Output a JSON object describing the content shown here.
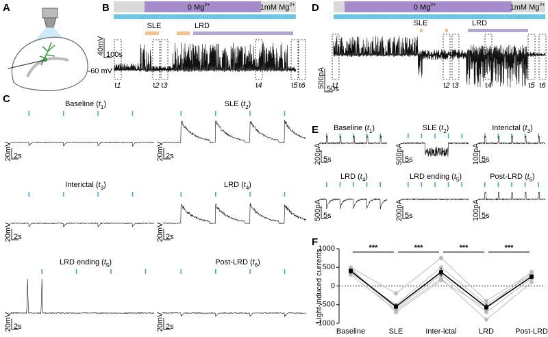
{
  "panels": {
    "A": {
      "letter": "A"
    },
    "B": {
      "letter": "B",
      "mg_free": [
        "0 Mg",
        "2+"
      ],
      "mg_normal": [
        "1mM Mg",
        "2+"
      ],
      "sle": "SLE",
      "lrd": "LRD",
      "scale_v": "40mV",
      "scale_t": "100s",
      "baseline": "-60 mV",
      "times": [
        [
          "t",
          "1"
        ],
        [
          "t",
          "2"
        ],
        [
          "t",
          "3"
        ],
        [
          "t",
          "4"
        ],
        [
          "t",
          "5"
        ],
        [
          "t",
          "6"
        ]
      ]
    },
    "C": {
      "letter": "C",
      "traces": [
        {
          "title": [
            "Baseline (",
            "t",
            "1",
            ")"
          ],
          "scale_v": "20mV",
          "scale_t": "2s"
        },
        {
          "title": [
            "SLE (",
            "t",
            "2",
            ")"
          ],
          "scale_v": "20mV",
          "scale_t": "2s"
        },
        {
          "title": [
            "Interictal (",
            "t",
            "3",
            ")"
          ],
          "scale_v": "20mV",
          "scale_t": "2s"
        },
        {
          "title": [
            "LRD (",
            "t",
            "4",
            ")"
          ],
          "scale_v": "20mV",
          "scale_t": "2s"
        },
        {
          "title": [
            "LRD ending (",
            "t",
            "5",
            ")"
          ],
          "scale_v": "20mV",
          "scale_t": "2s"
        },
        {
          "title": [
            "Post-LRD (",
            "t",
            "6",
            ")"
          ],
          "scale_v": "20mV",
          "scale_t": "2s"
        }
      ]
    },
    "D": {
      "letter": "D",
      "mg_free": [
        "0 Mg",
        "2+"
      ],
      "mg_normal": [
        "1mM Mg",
        "2+"
      ],
      "sle": "SLE",
      "lrd": "LRD",
      "scale_i": "500pA",
      "scale_t": "50s",
      "times": [
        [
          "t",
          "1"
        ],
        [
          "t",
          "2"
        ],
        [
          "t",
          "3"
        ],
        [
          "t",
          "4"
        ],
        [
          "t",
          "5"
        ],
        [
          "t",
          "6"
        ]
      ]
    },
    "E": {
      "letter": "E",
      "traces": [
        {
          "title": [
            "Baseline (",
            "t",
            "1",
            ")"
          ],
          "scale_i": "200pA",
          "scale_t": "5s"
        },
        {
          "title": [
            "SLE (",
            "t",
            "2",
            ")"
          ],
          "scale_i": "500pA",
          "scale_t": "5s"
        },
        {
          "title": [
            "Interictal (",
            "t",
            "3",
            ")"
          ],
          "scale_i": "100pA",
          "scale_t": "5s"
        },
        {
          "title": [
            "LRD (",
            "t",
            "4",
            ")"
          ],
          "scale_i": "500pA",
          "scale_t": "5s"
        },
        {
          "title": [
            "LRD ending (",
            "t",
            "5",
            ")"
          ],
          "scale_i": "200pA",
          "scale_t": "5s"
        },
        {
          "title": [
            "Post-LRD (",
            "t",
            "6",
            ")"
          ],
          "scale_i": "100pA",
          "scale_t": "5s"
        }
      ]
    },
    "F": {
      "letter": "F"
    }
  },
  "chart_data": {
    "type": "line",
    "ylabel": "Light-induced currents",
    "categories": [
      "Baseline",
      "SLE",
      "Inter-ictal",
      "LRD",
      "Post-LRD"
    ],
    "ylim": [
      -1000,
      1000
    ],
    "yticks": [
      1000,
      500,
      0,
      -500,
      -1000
    ],
    "zero_line": true,
    "significance": [
      "***",
      "***",
      "***",
      "***"
    ],
    "series": [
      {
        "color": "#bbbbbb",
        "values": [
          500,
          -200,
          750,
          -400,
          350
        ]
      },
      {
        "color": "#bbbbbb",
        "values": [
          450,
          -600,
          300,
          -700,
          200
        ]
      },
      {
        "color": "#bbbbbb",
        "values": [
          300,
          -650,
          200,
          -900,
          100
        ]
      },
      {
        "color": "#bbbbbb",
        "values": [
          350,
          -500,
          500,
          -500,
          300
        ]
      },
      {
        "color": "#bbbbbb",
        "values": [
          480,
          -700,
          150,
          -600,
          380
        ]
      },
      {
        "color": "#000000",
        "values": [
          400,
          -550,
          370,
          -570,
          250
        ],
        "errors": [
          80,
          70,
          110,
          90,
          60
        ]
      }
    ]
  }
}
